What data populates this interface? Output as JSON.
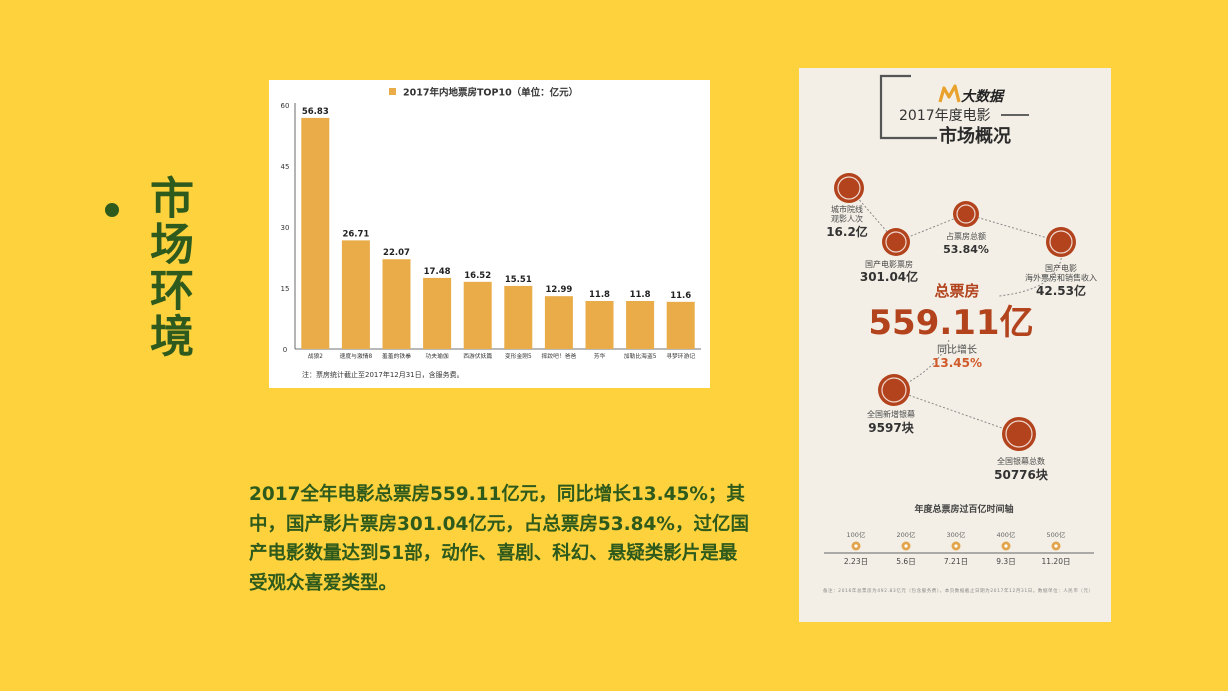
{
  "slide": {
    "title": "市场环境",
    "paragraph": "2017全年电影总票房559.11亿元，同比增长13.45%；其中，国产影片票房301.04亿元，占总票房53.84%，过亿国产电影数量达到51部，动作、喜剧、科幻、悬疑类影片是最受观众喜爱类型。"
  },
  "chart_data": {
    "type": "bar",
    "title": "2017年内地票房TOP10（单位：亿元）",
    "categories": [
      "战狼2",
      "速度与激情8",
      "羞羞的铁拳",
      "功夫瑜伽",
      "西游伏妖篇",
      "变形金刚5",
      "摔跤吧！爸爸",
      "芳华",
      "加勒比海盗5",
      "寻梦环游记"
    ],
    "values": [
      56.83,
      26.71,
      22.07,
      17.48,
      16.52,
      15.51,
      12.99,
      11.8,
      11.8,
      11.6
    ],
    "data_labels": [
      "56.83",
      "26.71",
      "22.07",
      "17.48",
      "16.52",
      "15.51",
      "12.99",
      "11.8",
      "11.8",
      "11.6"
    ],
    "yticks": [
      "0",
      "15",
      "30",
      "45",
      "60"
    ],
    "ylim": [
      0,
      60
    ],
    "xlabel": "",
    "ylabel": "",
    "legend": "top-center",
    "grid": false,
    "bar_color": "#eaac48",
    "note": "注：票房统计截止至2017年12月31日，含服务费。"
  },
  "infographic": {
    "brand": "大数据",
    "title_line1": "2017年度电影",
    "title_line2": "市场概况",
    "stats": [
      {
        "label": "城市院线\n观影人次",
        "value": "16.2亿",
        "icon": "audience-icon"
      },
      {
        "label": "占票房总额",
        "value": "53.84%",
        "icon": "pie-icon"
      },
      {
        "label": "国产电影票房",
        "value": "301.04亿",
        "icon": "ticket-icon"
      },
      {
        "label": "国产电影\n海外票房和销售收入",
        "value": "42.53亿",
        "icon": "globe-ticket-icon"
      }
    ],
    "total_label": "总票房",
    "total_value": "559.11亿",
    "growth_label": "同比增长",
    "growth_value": "13.45%",
    "screens": [
      {
        "label": "全国新增银幕",
        "value": "9597块",
        "icon": "screen-icon"
      },
      {
        "label": "全国银幕总数",
        "value": "50776块",
        "icon": "star-screen-icon"
      }
    ],
    "timeline_title": "年度总票房过百亿时间轴",
    "timeline": [
      {
        "amount": "100亿",
        "date": "2.23日"
      },
      {
        "amount": "200亿",
        "date": "5.6日"
      },
      {
        "amount": "300亿",
        "date": "7.21日"
      },
      {
        "amount": "400亿",
        "date": "9.3日"
      },
      {
        "amount": "500亿",
        "date": "11.20日"
      }
    ],
    "footnote": "备注：2016年总票房为492.83亿元（包含服务费），本页数据截止日期为2017年12月31日。数据单位：人民币（元）",
    "colors": {
      "accent": "#b2431d",
      "text": "#4a4a4a",
      "growth": "#d05a2a"
    }
  }
}
